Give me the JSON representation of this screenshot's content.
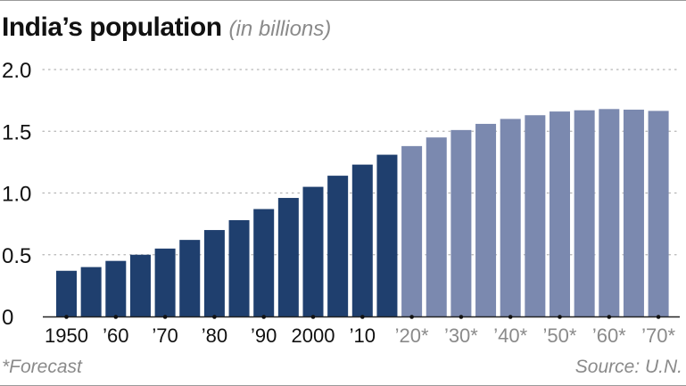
{
  "chart_data": {
    "type": "bar",
    "title": "India’s population",
    "subtitle": "(in billions)",
    "xlabel": "",
    "ylabel": "",
    "ylim": [
      0,
      2.0
    ],
    "yticks": [
      {
        "value": 0,
        "label": "0"
      },
      {
        "value": 0.5,
        "label": "0.5"
      },
      {
        "value": 1.0,
        "label": "1.0"
      },
      {
        "value": 1.5,
        "label": "1.5"
      },
      {
        "value": 2.0,
        "label": "2.0"
      }
    ],
    "grid": true,
    "categories": [
      "1950",
      "1955",
      "1960",
      "1965",
      "1970",
      "1975",
      "1980",
      "1985",
      "1990",
      "1995",
      "2000",
      "2005",
      "2010",
      "2015",
      "2020",
      "2025",
      "2030",
      "2035",
      "2040",
      "2045",
      "2050",
      "2055",
      "2060",
      "2065",
      "2070"
    ],
    "values": [
      0.37,
      0.4,
      0.45,
      0.5,
      0.55,
      0.62,
      0.7,
      0.78,
      0.87,
      0.96,
      1.05,
      1.14,
      1.23,
      1.31,
      1.38,
      1.45,
      1.51,
      1.56,
      1.6,
      1.63,
      1.66,
      1.67,
      1.68,
      1.675,
      1.665
    ],
    "forecast": [
      false,
      false,
      false,
      false,
      false,
      false,
      false,
      false,
      false,
      false,
      false,
      false,
      false,
      false,
      true,
      true,
      true,
      true,
      true,
      true,
      true,
      true,
      true,
      true,
      true
    ],
    "xtick_labels": [
      {
        "index": 0,
        "label": "1950"
      },
      {
        "index": 2,
        "label": "’60"
      },
      {
        "index": 4,
        "label": "’70"
      },
      {
        "index": 6,
        "label": "’80"
      },
      {
        "index": 8,
        "label": "’90"
      },
      {
        "index": 10,
        "label": "2000"
      },
      {
        "index": 12,
        "label": "’10"
      },
      {
        "index": 14,
        "label": "’20*"
      },
      {
        "index": 16,
        "label": "’30*"
      },
      {
        "index": 18,
        "label": "’40*"
      },
      {
        "index": 20,
        "label": "’50*"
      },
      {
        "index": 22,
        "label": "’60*"
      },
      {
        "index": 24,
        "label": "’70*"
      }
    ],
    "colors": {
      "historical": "#1f3f6e",
      "forecast": "#7b89af",
      "historical_tick_label": "#111111",
      "forecast_tick_label": "#8a8a8a",
      "grid": "#b5b5b5",
      "baseline": "#222222"
    }
  },
  "footnote": "*Forecast",
  "source": "Source: U.N."
}
